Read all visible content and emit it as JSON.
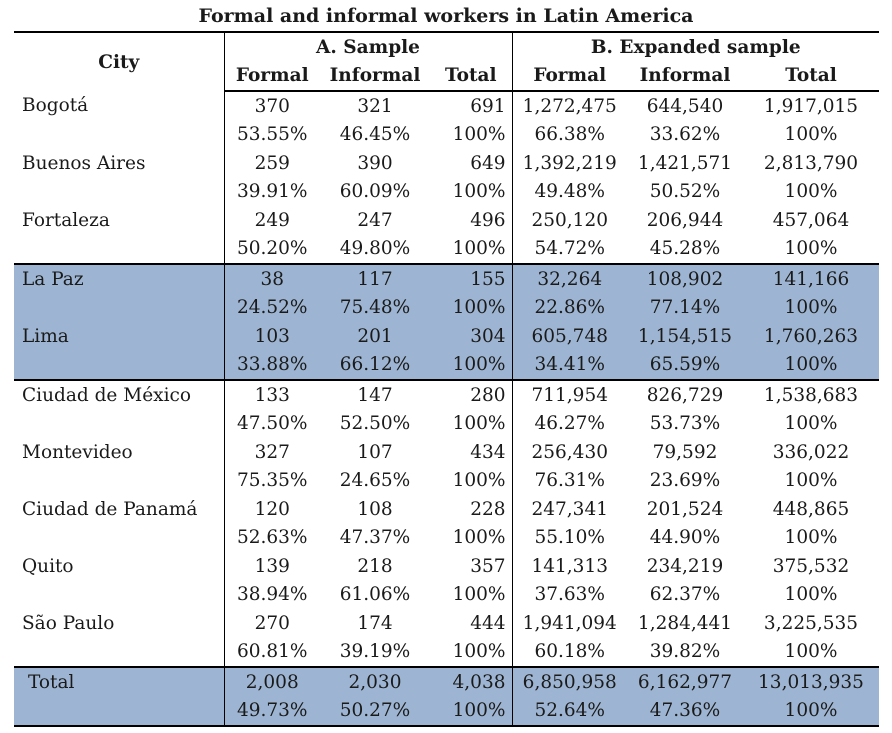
{
  "title": "Formal and informal workers in Latin America",
  "headers": {
    "city": "City",
    "group_a": "A. Sample",
    "group_b": "B. Expanded sample",
    "formal": "Formal",
    "informal": "Informal",
    "total": "Total"
  },
  "rows": [
    {
      "city": "Bogotá",
      "highlight": false,
      "counts": [
        "370",
        "321",
        "691",
        "1,272,475",
        "644,540",
        "1,917,015"
      ],
      "pcts": [
        "53.55%",
        "46.45%",
        "100%",
        "66.38%",
        "33.62%",
        "100%"
      ]
    },
    {
      "city": "Buenos Aires",
      "highlight": false,
      "counts": [
        "259",
        "390",
        "649",
        "1,392,219",
        "1,421,571",
        "2,813,790"
      ],
      "pcts": [
        "39.91%",
        "60.09%",
        "100%",
        "49.48%",
        "50.52%",
        "100%"
      ]
    },
    {
      "city": "Fortaleza",
      "highlight": false,
      "counts": [
        "249",
        "247",
        "496",
        "250,120",
        "206,944",
        "457,064"
      ],
      "pcts": [
        "50.20%",
        "49.80%",
        "100%",
        "54.72%",
        "45.28%",
        "100%"
      ]
    },
    {
      "city": "La Paz",
      "highlight": true,
      "counts": [
        "38",
        "117",
        "155",
        "32,264",
        "108,902",
        "141,166"
      ],
      "pcts": [
        "24.52%",
        "75.48%",
        "100%",
        "22.86%",
        "77.14%",
        "100%"
      ]
    },
    {
      "city": "Lima",
      "highlight": true,
      "counts": [
        "103",
        "201",
        "304",
        "605,748",
        "1,154,515",
        "1,760,263"
      ],
      "pcts": [
        "33.88%",
        "66.12%",
        "100%",
        "34.41%",
        "65.59%",
        "100%"
      ]
    },
    {
      "city": "Ciudad de México",
      "highlight": false,
      "counts": [
        "133",
        "147",
        "280",
        "711,954",
        "826,729",
        "1,538,683"
      ],
      "pcts": [
        "47.50%",
        "52.50%",
        "100%",
        "46.27%",
        "53.73%",
        "100%"
      ]
    },
    {
      "city": "Montevideo",
      "highlight": false,
      "counts": [
        "327",
        "107",
        "434",
        "256,430",
        "79,592",
        "336,022"
      ],
      "pcts": [
        "75.35%",
        "24.65%",
        "100%",
        "76.31%",
        "23.69%",
        "100%"
      ]
    },
    {
      "city": "Ciudad de Panamá",
      "highlight": false,
      "counts": [
        "120",
        "108",
        "228",
        "247,341",
        "201,524",
        "448,865"
      ],
      "pcts": [
        "52.63%",
        "47.37%",
        "100%",
        "55.10%",
        "44.90%",
        "100%"
      ]
    },
    {
      "city": "Quito",
      "highlight": false,
      "counts": [
        "139",
        "218",
        "357",
        "141,313",
        "234,219",
        "375,532"
      ],
      "pcts": [
        "38.94%",
        "61.06%",
        "100%",
        "37.63%",
        "62.37%",
        "100%"
      ]
    },
    {
      "city": "São Paulo",
      "highlight": false,
      "counts": [
        "270",
        "174",
        "444",
        "1,941,094",
        "1,284,441",
        "3,225,535"
      ],
      "pcts": [
        "60.81%",
        "39.19%",
        "100%",
        "60.18%",
        "39.82%",
        "100%"
      ]
    }
  ],
  "total_row": {
    "city": "Total",
    "counts": [
      "2,008",
      "2,030",
      "4,038",
      "6,850,958",
      "6,162,977",
      "13,013,935"
    ],
    "pcts": [
      "49.73%",
      "50.27%",
      "100%",
      "52.64%",
      "47.36%",
      "100%"
    ]
  },
  "colors": {
    "highlight": "#9db5d2",
    "rule": "#000000",
    "text": "#1a1a1a"
  }
}
